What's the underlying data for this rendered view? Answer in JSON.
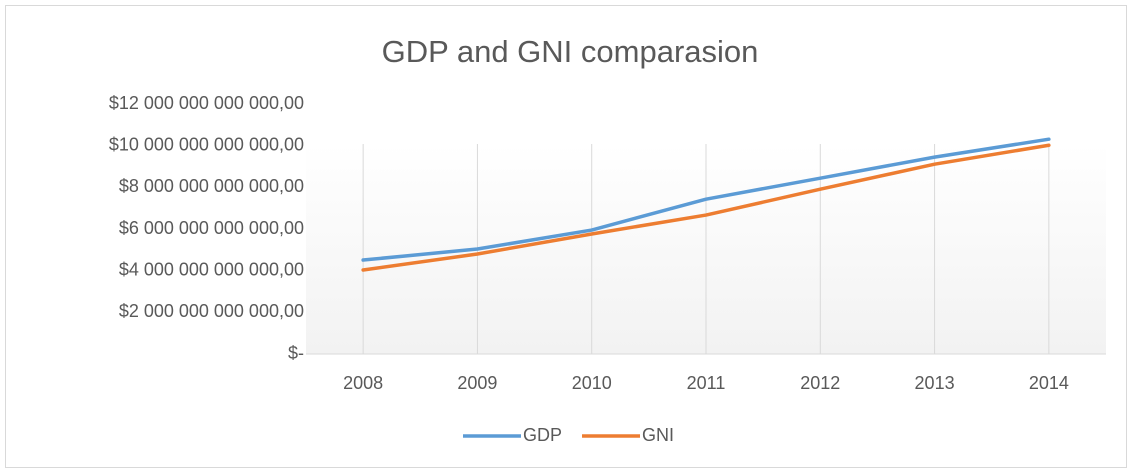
{
  "chart_data": {
    "type": "line",
    "title": "GDP and GNI comparasion",
    "categories": [
      "2008",
      "2009",
      "2010",
      "2011",
      "2012",
      "2013",
      "2014"
    ],
    "series": [
      {
        "name": "GDP",
        "color": "#5b9bd5",
        "values": [
          4510000000000,
          5040000000000,
          5950000000000,
          7430000000000,
          8440000000000,
          9450000000000,
          10310000000000
        ]
      },
      {
        "name": "GNI",
        "color": "#ed7d31",
        "values": [
          4030000000000,
          4800000000000,
          5760000000000,
          6670000000000,
          7910000000000,
          9110000000000,
          10020000000000
        ]
      }
    ],
    "ylim": [
      0,
      12000000000000
    ],
    "yticks": [
      {
        "value": 0,
        "label": "$-"
      },
      {
        "value": 2000000000000,
        "label": "$2 000 000 000 000,00"
      },
      {
        "value": 4000000000000,
        "label": "$4 000 000 000 000,00"
      },
      {
        "value": 6000000000000,
        "label": "$6 000 000 000 000,00"
      },
      {
        "value": 8000000000000,
        "label": "$8 000 000 000 000,00"
      },
      {
        "value": 10000000000000,
        "label": "$10 000 000 000 000,00"
      },
      {
        "value": 12000000000000,
        "label": "$12 000 000 000 000,00"
      }
    ],
    "grid": true,
    "legend": "bottom"
  }
}
